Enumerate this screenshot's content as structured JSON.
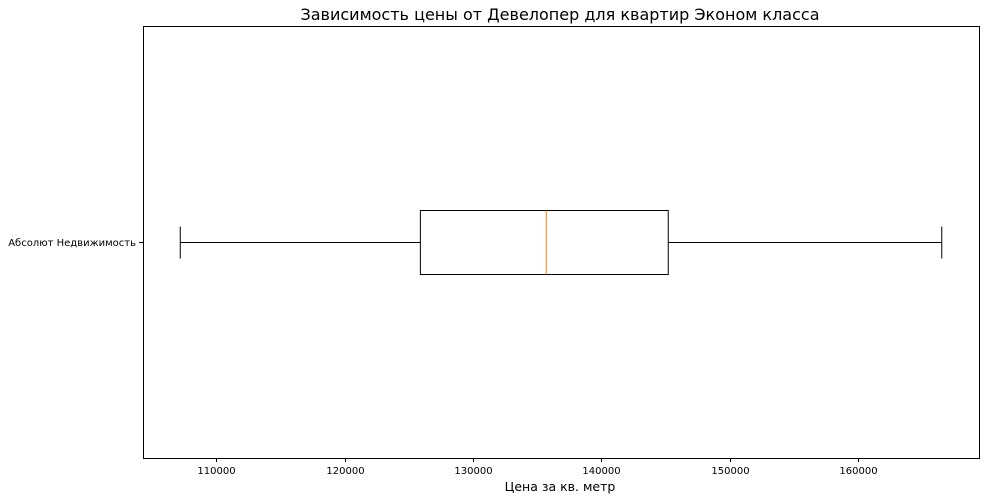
{
  "chart_data": {
    "type": "boxplot",
    "orientation": "horizontal",
    "title": "Зависимость цены от Девелопер для квартир Эконом класса",
    "xlabel": "Цена за кв. метр",
    "ylabel": "",
    "categories": [
      "Абсолют Недвижимость"
    ],
    "boxes": [
      {
        "category": "Абсолют Недвижимость",
        "whisker_low": 107200,
        "q1": 125900,
        "median": 135700,
        "q3": 145200,
        "whisker_high": 166500
      }
    ],
    "xlim": [
      104300,
      169400
    ],
    "xticks": [
      110000,
      120000,
      130000,
      140000,
      150000,
      160000
    ],
    "xtick_labels": [
      "110000",
      "120000",
      "130000",
      "140000",
      "150000",
      "160000"
    ],
    "grid": false,
    "legend": "none",
    "colors": {
      "box": "#000000",
      "median": "#ff7f0e",
      "whisker": "#000000"
    }
  }
}
